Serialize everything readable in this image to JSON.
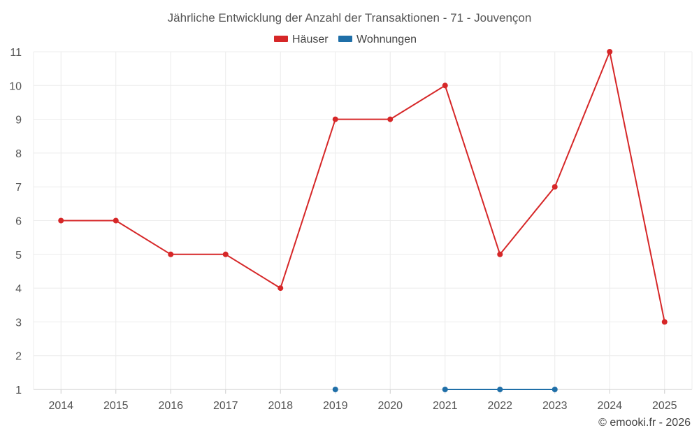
{
  "chart_data": {
    "type": "line",
    "title": "Jährliche Entwicklung der Anzahl der Transaktionen - 71 - Jouvençon",
    "categories": [
      "2014",
      "2015",
      "2016",
      "2017",
      "2018",
      "2019",
      "2020",
      "2021",
      "2022",
      "2023",
      "2024",
      "2025"
    ],
    "y_ticks": [
      1,
      2,
      3,
      4,
      5,
      6,
      7,
      8,
      9,
      10,
      11
    ],
    "ylim": [
      1,
      11
    ],
    "grid": true,
    "legend_position": "top",
    "series": [
      {
        "name": "Häuser",
        "color": "#d62728",
        "values": [
          6,
          6,
          5,
          5,
          4,
          9,
          9,
          10,
          5,
          7,
          11,
          3
        ]
      },
      {
        "name": "Wohnungen",
        "color": "#1f6fa8",
        "values": [
          null,
          null,
          null,
          null,
          null,
          1,
          null,
          1,
          1,
          1,
          null,
          null
        ]
      }
    ]
  },
  "credit": "© emooki.fr - 2026"
}
